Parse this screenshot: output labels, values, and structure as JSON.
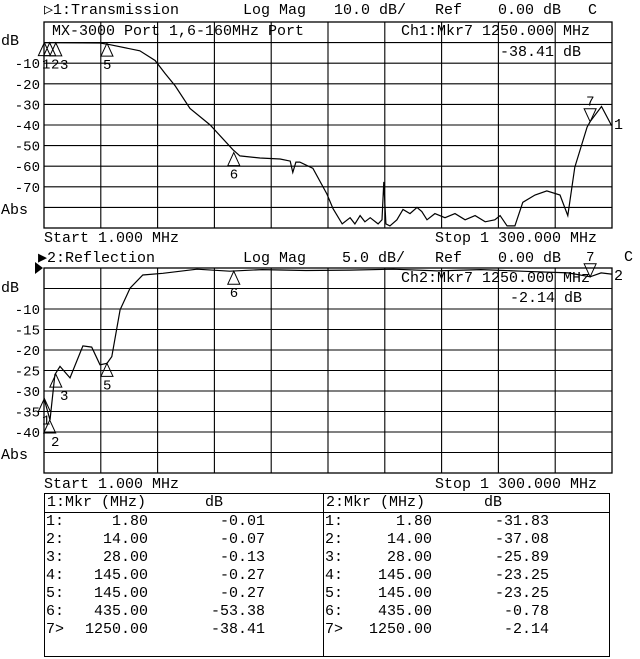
{
  "colors": {
    "background": "#ffffff",
    "foreground": "#000000"
  },
  "channel1": {
    "title": "▷1:Transmission",
    "format": "Log Mag",
    "scale": "10.0 dB/",
    "ref_label": "Ref",
    "ref_value": "0.00 dB",
    "flag": "C",
    "info_line": "MX-3000 Port 1,6-160MHz Port",
    "marker_readout": "Ch1:Mkr7 1250.000 MHz",
    "marker_value": "-38.41 dB",
    "unit_label": "dB",
    "abs_label": "Abs",
    "start": "Start 1.000 MHz",
    "stop": "Stop 1 300.000 MHz",
    "trace_end_label": "1"
  },
  "channel2": {
    "title": "▶2:Reflection",
    "format": "Log Mag",
    "scale": "5.0 dB/",
    "ref_label": "Ref",
    "ref_value": "0.00 dB",
    "flag": "C",
    "marker_readout": "Ch2:Mkr7 1250.000 MHz",
    "marker_value": "-2.14 dB",
    "unit_label": "dB",
    "abs_label": "Abs",
    "start": "Start 1.000 MHz",
    "stop": "Stop 1 300.000 MHz",
    "trace_end_label": "2"
  },
  "chart_data": [
    {
      "type": "line",
      "name": "1:Transmission",
      "xlim": [
        1,
        1300
      ],
      "ylim": [
        -90,
        10
      ],
      "y_ticks": [
        -10,
        -20,
        -30,
        -40,
        -50,
        -60,
        -70
      ],
      "x_divisions": 10,
      "y_divisions": 10,
      "grid": true,
      "x": [
        1,
        129,
        152,
        220,
        255,
        278,
        301,
        335,
        381,
        433,
        449,
        495,
        541,
        564,
        570,
        577,
        586,
        616,
        648,
        662,
        683,
        701,
        712,
        724,
        735,
        747,
        765,
        774,
        778,
        783,
        792,
        808,
        822,
        838,
        854,
        865,
        877,
        895,
        918,
        941,
        964,
        987,
        1010,
        1032,
        1044,
        1060,
        1078,
        1096,
        1124,
        1151,
        1181,
        1199,
        1215,
        1243,
        1250,
        1276,
        1299
      ],
      "y": [
        0,
        -0.2,
        -1,
        -4,
        -8.7,
        -15,
        -21,
        -32,
        -40,
        -52,
        -55,
        -56,
        -56.5,
        -57.5,
        -63,
        -58,
        -58,
        -61,
        -73.5,
        -80.6,
        -88,
        -85,
        -88,
        -84,
        -87,
        -85,
        -88,
        -86,
        -67.6,
        -88,
        -89,
        -86,
        -81,
        -83,
        -80,
        -82,
        -86,
        -83,
        -85,
        -83,
        -86,
        -84,
        -87,
        -86,
        -84,
        -89,
        -89,
        -77.5,
        -74,
        -72,
        -74,
        -84,
        -60.5,
        -41,
        -38.41,
        -31,
        -40.3
      ],
      "markers": [
        {
          "id": "1",
          "mhz": 1.8,
          "db": -0.01,
          "label": "1"
        },
        {
          "id": "2",
          "mhz": 14,
          "db": -0.07,
          "label": "2"
        },
        {
          "id": "3",
          "mhz": 28,
          "db": -0.13,
          "label": "3"
        },
        {
          "id": "4",
          "mhz": 145,
          "db": -0.27,
          "label": "4"
        },
        {
          "id": "5",
          "mhz": 145,
          "db": -0.27,
          "label": "5"
        },
        {
          "id": "6",
          "mhz": 435,
          "db": -53.38,
          "label": "6"
        },
        {
          "id": "7",
          "mhz": 1250,
          "db": -38.41,
          "label": "7",
          "active": true
        }
      ]
    },
    {
      "type": "line",
      "name": "2:Reflection",
      "xlim": [
        1,
        1300
      ],
      "ylim": [
        -50,
        0
      ],
      "y_ticks": [
        -10,
        -15,
        -20,
        -25,
        -30,
        -35,
        -40
      ],
      "x_divisions": 10,
      "y_divisions": 10,
      "grid": true,
      "x": [
        1,
        14.7,
        26,
        37.6,
        60.5,
        90,
        110,
        129,
        145,
        156,
        175,
        198,
        227,
        273,
        351,
        426,
        500,
        600,
        700,
        800,
        900,
        1000,
        1100,
        1200,
        1250,
        1275,
        1299
      ],
      "y": [
        -31.8,
        -37.08,
        -26,
        -24,
        -26.8,
        -19,
        -19.3,
        -23.6,
        -23.25,
        -21.6,
        -10.2,
        -4.9,
        -1.7,
        -1.3,
        -0.3,
        -0.78,
        -0.4,
        -0.6,
        -0.5,
        -0.3,
        -0.7,
        -0.4,
        -0.8,
        -1.2,
        -2.14,
        -1.2,
        -1.5
      ],
      "markers": [
        {
          "id": "1",
          "mhz": 1.8,
          "db": -31.83,
          "label": "1"
        },
        {
          "id": "2",
          "mhz": 14,
          "db": -37.08,
          "label": "2"
        },
        {
          "id": "3",
          "mhz": 28,
          "db": -25.89,
          "label": "3"
        },
        {
          "id": "4",
          "mhz": 145,
          "db": -23.25,
          "label": "4"
        },
        {
          "id": "5",
          "mhz": 145,
          "db": -23.25,
          "label": "5"
        },
        {
          "id": "6",
          "mhz": 435,
          "db": -0.78,
          "label": "6"
        },
        {
          "id": "7",
          "mhz": 1250,
          "db": -2.14,
          "label": "7",
          "active": true
        }
      ]
    }
  ],
  "marker_table": {
    "left": {
      "header_mkr": "1:Mkr (MHz)",
      "header_db": "dB",
      "rows": [
        {
          "idx": "1:",
          "freq": "1.80",
          "db": "-0.01"
        },
        {
          "idx": "2:",
          "freq": "14.00",
          "db": "-0.07"
        },
        {
          "idx": "3:",
          "freq": "28.00",
          "db": "-0.13"
        },
        {
          "idx": "4:",
          "freq": "145.00",
          "db": "-0.27"
        },
        {
          "idx": "5:",
          "freq": "145.00",
          "db": "-0.27"
        },
        {
          "idx": "6:",
          "freq": "435.00",
          "db": "-53.38"
        },
        {
          "idx": "7>",
          "freq": "1250.00",
          "db": "-38.41"
        }
      ]
    },
    "right": {
      "header_mkr": "2:Mkr (MHz)",
      "header_db": "dB",
      "rows": [
        {
          "idx": "1:",
          "freq": "1.80",
          "db": "-31.83"
        },
        {
          "idx": "2:",
          "freq": "14.00",
          "db": "-37.08"
        },
        {
          "idx": "3:",
          "freq": "28.00",
          "db": "-25.89"
        },
        {
          "idx": "4:",
          "freq": "145.00",
          "db": "-23.25"
        },
        {
          "idx": "5:",
          "freq": "145.00",
          "db": "-23.25"
        },
        {
          "idx": "6:",
          "freq": "435.00",
          "db": "-0.78"
        },
        {
          "idx": "7>",
          "freq": "1250.00",
          "db": "-2.14"
        }
      ]
    }
  }
}
